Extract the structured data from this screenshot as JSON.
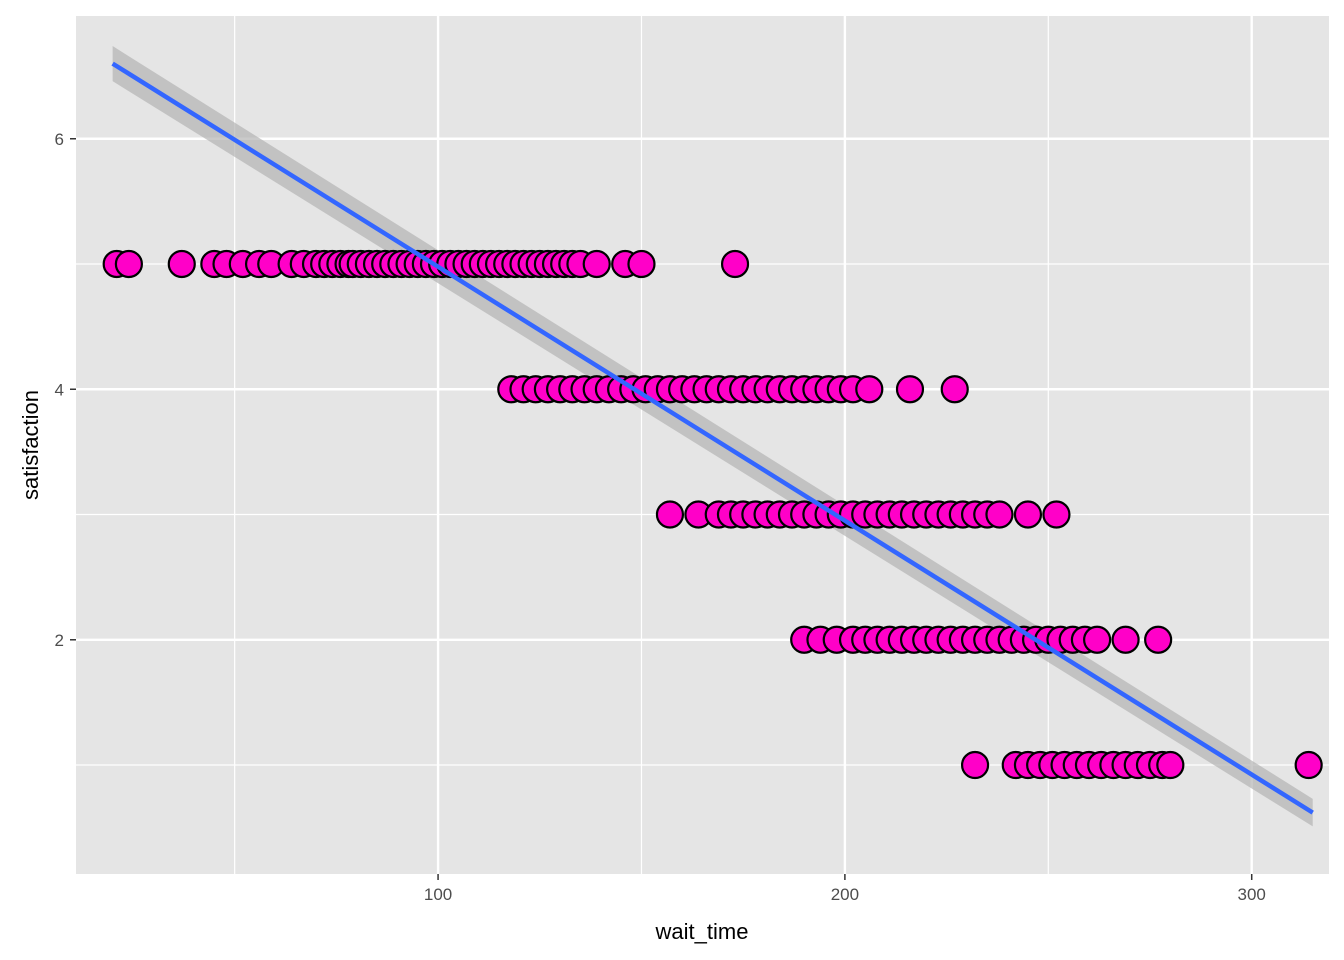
{
  "chart_data": {
    "type": "scatter",
    "title": "",
    "xlabel": "wait_time",
    "ylabel": "satisfaction",
    "xlim": [
      11,
      319
    ],
    "ylim": [
      0.13,
      6.98
    ],
    "x_ticks": [
      100,
      200,
      300
    ],
    "y_ticks": [
      2,
      4,
      6
    ],
    "grid": true,
    "legend": "none",
    "colors": {
      "panel": "#e5e5e5",
      "grid_major": "#ffffff",
      "point_fill": "#ff00c8",
      "point_stroke": "#000000",
      "line": "#3366ff",
      "band": "#b3b3b3"
    },
    "regression": {
      "x": [
        20,
        315
      ],
      "y": [
        6.6,
        0.62
      ],
      "band_halfwidth": [
        0.14,
        0.11
      ]
    },
    "series": [
      {
        "values_by_level": [
          {
            "y": 5,
            "x": [
              21,
              24,
              37,
              45,
              48,
              52,
              56,
              59,
              64,
              67,
              70,
              72,
              74,
              76,
              78,
              79,
              81,
              83,
              85,
              87,
              89,
              91,
              93,
              95,
              97,
              99,
              101,
              103,
              105,
              107,
              109,
              111,
              113,
              115,
              117,
              119,
              121,
              123,
              125,
              127,
              129,
              131,
              133,
              135,
              139,
              146,
              150,
              173
            ]
          },
          {
            "y": 4,
            "x": [
              118,
              121,
              124,
              127,
              130,
              133,
              136,
              139,
              142,
              145,
              148,
              151,
              154,
              157,
              160,
              163,
              166,
              169,
              172,
              175,
              178,
              181,
              184,
              187,
              190,
              193,
              196,
              199,
              202,
              206,
              216,
              227
            ]
          },
          {
            "y": 3,
            "x": [
              157,
              164,
              169,
              172,
              175,
              178,
              181,
              184,
              187,
              190,
              193,
              196,
              199,
              202,
              205,
              208,
              211,
              214,
              217,
              220,
              223,
              226,
              229,
              232,
              235,
              238,
              245,
              252
            ]
          },
          {
            "y": 2,
            "x": [
              190,
              194,
              198,
              202,
              205,
              208,
              211,
              214,
              217,
              220,
              223,
              226,
              229,
              232,
              235,
              238,
              241,
              244,
              247,
              250,
              253,
              256,
              259,
              262,
              269,
              277
            ]
          },
          {
            "y": 1,
            "x": [
              232,
              242,
              245,
              248,
              251,
              254,
              257,
              260,
              263,
              266,
              269,
              272,
              275,
              278,
              280,
              314
            ]
          }
        ]
      }
    ]
  }
}
